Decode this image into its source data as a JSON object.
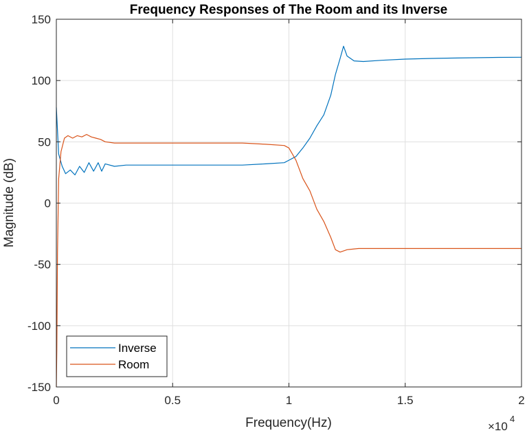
{
  "chart_data": {
    "type": "line",
    "title": "Frequency Responses of The Room and its Inverse",
    "xlabel": "Frequency(Hz)",
    "ylabel": "Magnitude (dB)",
    "x_exponent_base": "×10",
    "x_exponent_power": "4",
    "xlim": [
      0,
      20000
    ],
    "ylim": [
      -150,
      150
    ],
    "xticks": [
      0,
      5000,
      10000,
      15000,
      20000
    ],
    "xtick_labels": [
      "0",
      "0.5",
      "1",
      "1.5",
      "2"
    ],
    "yticks": [
      -150,
      -100,
      -50,
      0,
      50,
      100,
      150
    ],
    "ytick_labels": [
      "-150",
      "-100",
      "-50",
      "0",
      "50",
      "100",
      "150"
    ],
    "grid": true,
    "legend_position": "bottom-left",
    "series": [
      {
        "name": "Inverse",
        "color": "#0072BD",
        "points": [
          [
            0,
            78
          ],
          [
            100,
            40
          ],
          [
            250,
            30
          ],
          [
            400,
            24
          ],
          [
            600,
            27
          ],
          [
            800,
            23
          ],
          [
            1000,
            30
          ],
          [
            1200,
            25
          ],
          [
            1400,
            33
          ],
          [
            1600,
            26
          ],
          [
            1800,
            33
          ],
          [
            1950,
            26
          ],
          [
            2100,
            32
          ],
          [
            2500,
            30
          ],
          [
            3000,
            31
          ],
          [
            4000,
            31
          ],
          [
            5000,
            31
          ],
          [
            6000,
            31
          ],
          [
            7000,
            31
          ],
          [
            8000,
            31
          ],
          [
            9000,
            32
          ],
          [
            9800,
            33
          ],
          [
            10000,
            35
          ],
          [
            10300,
            38
          ],
          [
            10600,
            45
          ],
          [
            10900,
            53
          ],
          [
            11200,
            63
          ],
          [
            11500,
            72
          ],
          [
            11800,
            88
          ],
          [
            12000,
            105
          ],
          [
            12200,
            118
          ],
          [
            12350,
            128
          ],
          [
            12500,
            120
          ],
          [
            12800,
            116
          ],
          [
            13200,
            115.5
          ],
          [
            14000,
            116.5
          ],
          [
            15000,
            117.5
          ],
          [
            16000,
            118
          ],
          [
            17000,
            118.3
          ],
          [
            18000,
            118.6
          ],
          [
            19000,
            118.9
          ],
          [
            20000,
            119
          ]
        ]
      },
      {
        "name": "Room",
        "color": "#D95319",
        "points": [
          [
            0,
            -150
          ],
          [
            20,
            -120
          ],
          [
            50,
            -40
          ],
          [
            100,
            20
          ],
          [
            200,
            42
          ],
          [
            350,
            53
          ],
          [
            500,
            55
          ],
          [
            700,
            53
          ],
          [
            900,
            55
          ],
          [
            1100,
            54
          ],
          [
            1300,
            56
          ],
          [
            1500,
            54
          ],
          [
            1700,
            53
          ],
          [
            1900,
            52
          ],
          [
            2100,
            50
          ],
          [
            2500,
            49
          ],
          [
            3000,
            49
          ],
          [
            4000,
            49
          ],
          [
            5000,
            49
          ],
          [
            6000,
            49
          ],
          [
            7000,
            49
          ],
          [
            8000,
            49
          ],
          [
            9000,
            48
          ],
          [
            9800,
            47
          ],
          [
            10000,
            45
          ],
          [
            10300,
            35
          ],
          [
            10600,
            20
          ],
          [
            10900,
            10
          ],
          [
            11200,
            -5
          ],
          [
            11500,
            -15
          ],
          [
            11800,
            -28
          ],
          [
            12000,
            -38
          ],
          [
            12200,
            -40
          ],
          [
            12500,
            -38
          ],
          [
            13000,
            -37
          ],
          [
            14000,
            -37
          ],
          [
            15000,
            -37
          ],
          [
            16000,
            -37
          ],
          [
            17000,
            -37
          ],
          [
            18000,
            -37
          ],
          [
            19000,
            -37
          ],
          [
            20000,
            -37
          ]
        ]
      }
    ]
  }
}
